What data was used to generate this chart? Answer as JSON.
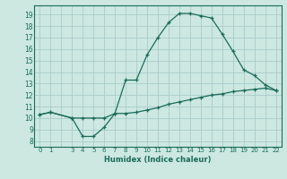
{
  "xlabel": "Humidex (Indice chaleur)",
  "background_color": "#cce8e0",
  "grid_color": "#aacccc",
  "line_color": "#1a6b5a",
  "x_labels": [
    "0",
    "1",
    "",
    "3",
    "4",
    "5",
    "6",
    "7",
    "8",
    "9",
    "10",
    "11",
    "12",
    "13",
    "14",
    "15",
    "16",
    "17",
    "18",
    "19",
    "20",
    "21",
    "22"
  ],
  "y_ticks": [
    8,
    9,
    10,
    11,
    12,
    13,
    14,
    15,
    16,
    17,
    18,
    19
  ],
  "xlim": [
    -0.5,
    22.5
  ],
  "ylim": [
    7.5,
    19.8
  ],
  "line1_x": [
    0,
    1,
    3,
    4,
    5,
    6,
    7,
    8,
    9,
    10,
    11,
    12,
    13,
    14,
    15,
    16,
    17,
    18,
    19,
    20,
    21,
    22
  ],
  "line1_y": [
    10.3,
    10.5,
    10.0,
    8.4,
    8.4,
    9.2,
    10.4,
    13.3,
    13.3,
    15.5,
    17.0,
    18.3,
    19.1,
    19.1,
    18.9,
    18.7,
    17.3,
    15.8,
    14.2,
    13.7,
    12.9,
    12.4
  ],
  "line2_x": [
    0,
    1,
    3,
    4,
    5,
    6,
    7,
    8,
    9,
    10,
    11,
    12,
    13,
    14,
    15,
    16,
    17,
    18,
    19,
    20,
    21,
    22
  ],
  "line2_y": [
    10.3,
    10.5,
    10.0,
    10.0,
    10.0,
    10.0,
    10.4,
    10.4,
    10.5,
    10.7,
    10.9,
    11.2,
    11.4,
    11.6,
    11.8,
    12.0,
    12.1,
    12.3,
    12.4,
    12.5,
    12.6,
    12.4
  ]
}
